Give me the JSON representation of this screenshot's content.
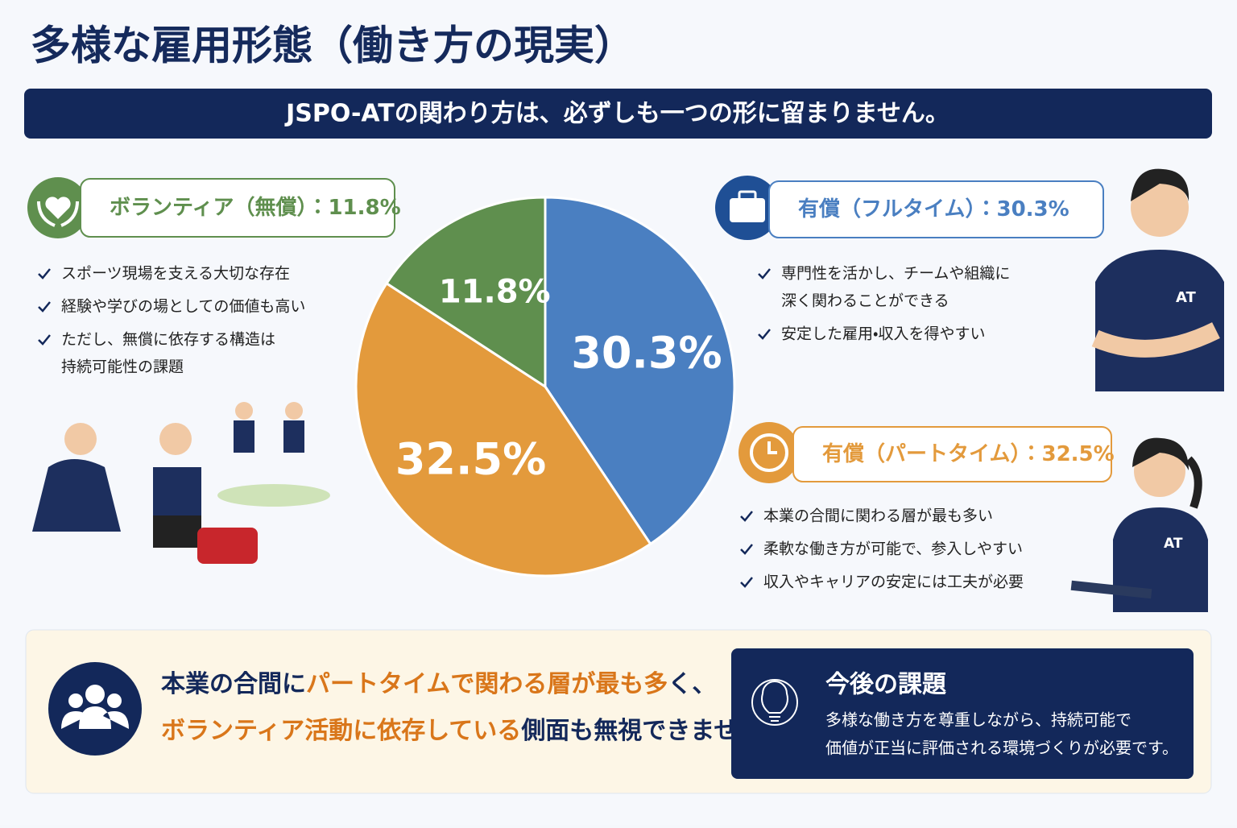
{
  "title": "多様な雇用形態（働き方の現実）",
  "banner": "JSPO-ATの関わり方は、必ずしも一つの形に留まりません。",
  "chart_data": {
    "type": "pie",
    "categories": [
      "有償（フルタイム）",
      "有償（パートタイム）",
      "ボランティア（無償）"
    ],
    "values": [
      30.3,
      32.5,
      11.8
    ],
    "value_labels": [
      "30.3%",
      "32.5%",
      "11.8%"
    ],
    "colors": [
      "#4a7fc1",
      "#e39a3c",
      "#5f8f4e"
    ]
  },
  "separator": "：",
  "callouts": [
    {
      "bullets": [
        [
          "専門性を活かし、チームや組織に",
          "深く関わることができる"
        ],
        [
          "安定した雇用・収入を得やすい"
        ]
      ]
    },
    {
      "bullets": [
        [
          "本業の合間に関わる層が最も多い"
        ],
        [
          "柔軟な働き方が可能で、参入しやすい"
        ],
        [
          "収入やキャリアの安定には工夫が必要"
        ]
      ]
    },
    {
      "bullets": [
        [
          "スポーツ現場を支える大切な存在"
        ],
        [
          "経験や学びの場としての価値も高い"
        ],
        [
          "ただし、無償に依存する構造は",
          "持続可能性の課題"
        ]
      ]
    }
  ],
  "summary": {
    "lines": [
      [
        {
          "text": "本業の合間に",
          "highlight": false
        },
        {
          "text": "パートタイムで関わる層が最も多",
          "highlight": true
        },
        {
          "text": "く、",
          "highlight": false
        }
      ],
      [
        {
          "text": "ボランティア活動に依存している",
          "highlight": true
        },
        {
          "text": "側面も無視できません。",
          "highlight": false
        }
      ]
    ]
  },
  "challenge": {
    "title": "今後の課題",
    "lines": [
      "多様な働き方を尊重しながら、持続可能で",
      "価値が正当に評価される環境づくりが必要です。"
    ]
  },
  "figure_labels": [
    "AT",
    "AT"
  ]
}
